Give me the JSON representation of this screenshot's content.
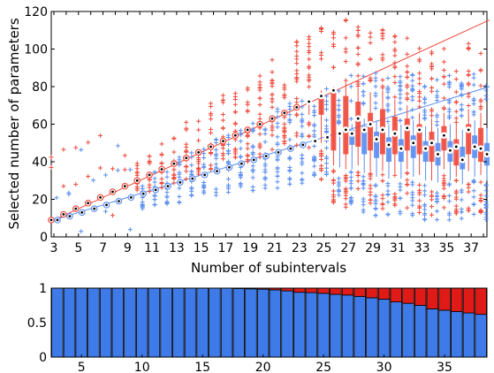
{
  "chart_data": [
    {
      "type": "box",
      "xlabel": "Number of subintervals",
      "ylabel": "Selected number of parameters",
      "xlim": [
        3,
        38
      ],
      "ylim": [
        0,
        120
      ],
      "xticks": [
        "3",
        "5",
        "7",
        "9",
        "11",
        "13",
        "15",
        "17",
        "19",
        "21",
        "23",
        "25",
        "27",
        "29",
        "31",
        "33",
        "35",
        "37"
      ],
      "yticks": [
        "0",
        "20",
        "40",
        "60",
        "80",
        "100",
        "120"
      ],
      "colors": {
        "red": "#ef4a3c",
        "blue": "#5b8ef0"
      },
      "reference_lines": [
        {
          "color": "red",
          "slope": 3,
          "intercept": 0
        },
        {
          "color": "blue",
          "slope": 2,
          "intercept": 3
        }
      ],
      "series": [
        {
          "color": "red",
          "x": [
            3,
            4,
            5,
            6,
            7,
            8,
            9,
            10,
            11,
            12,
            13,
            14,
            15,
            16,
            17,
            18,
            19,
            20,
            21,
            22,
            23,
            24,
            25,
            26,
            27,
            28,
            29,
            30,
            31,
            32,
            33,
            34,
            35,
            36,
            37,
            38
          ],
          "median": [
            9,
            12,
            15,
            18,
            21,
            24,
            27,
            30,
            33,
            36,
            39,
            42,
            45,
            48,
            51,
            54,
            57,
            60,
            63,
            66,
            69,
            72,
            75,
            78,
            57,
            63,
            60,
            57,
            55,
            58,
            57,
            50,
            54,
            48,
            57,
            47
          ],
          "q1": [
            9,
            12,
            15,
            18,
            21,
            24,
            27,
            30,
            33,
            36,
            39,
            42,
            45,
            48,
            51,
            54,
            57,
            60,
            63,
            66,
            69,
            72,
            65,
            46,
            44,
            48,
            46,
            44,
            44,
            46,
            44,
            40,
            46,
            38,
            44,
            40
          ],
          "q3": [
            9,
            12,
            15,
            18,
            21,
            24,
            27,
            30,
            33,
            36,
            39,
            42,
            45,
            48,
            51,
            54,
            57,
            60,
            63,
            66,
            69,
            72,
            76,
            78,
            75,
            72,
            66,
            68,
            64,
            63,
            60,
            56,
            59,
            52,
            60,
            58
          ],
          "whisker_low": [
            9,
            12,
            15,
            18,
            21,
            24,
            27,
            30,
            33,
            36,
            39,
            42,
            45,
            48,
            51,
            54,
            57,
            60,
            63,
            66,
            69,
            65,
            50,
            38,
            36,
            38,
            35,
            35,
            34,
            36,
            33,
            30,
            36,
            32,
            35,
            33
          ],
          "whisker_high": [
            9,
            12,
            15,
            18,
            21,
            24,
            27,
            30,
            33,
            36,
            39,
            42,
            45,
            48,
            51,
            54,
            57,
            60,
            63,
            66,
            69,
            72,
            78,
            80,
            82,
            79,
            77,
            78,
            73,
            70,
            66,
            63,
            66,
            60,
            68,
            66
          ]
        },
        {
          "color": "blue",
          "x": [
            3,
            4,
            5,
            6,
            7,
            8,
            9,
            10,
            11,
            12,
            13,
            14,
            15,
            16,
            17,
            18,
            19,
            20,
            21,
            22,
            23,
            24,
            25,
            26,
            27,
            28,
            29,
            30,
            31,
            32,
            33,
            34,
            35,
            36,
            37,
            38
          ],
          "median": [
            9,
            11,
            13,
            15,
            17,
            19,
            21,
            23,
            25,
            27,
            29,
            31,
            33,
            35,
            37,
            39,
            41,
            43,
            45,
            47,
            49,
            51,
            53,
            55,
            55,
            57,
            52,
            49,
            47,
            50,
            47,
            44,
            46,
            41,
            48,
            44
          ],
          "q1": [
            9,
            11,
            13,
            15,
            17,
            19,
            21,
            23,
            25,
            27,
            29,
            31,
            33,
            35,
            37,
            39,
            41,
            43,
            45,
            47,
            49,
            51,
            53,
            55,
            49,
            44,
            42,
            40,
            40,
            42,
            40,
            38,
            40,
            36,
            42,
            38
          ],
          "q3": [
            9,
            11,
            13,
            15,
            17,
            19,
            21,
            23,
            25,
            27,
            29,
            31,
            33,
            35,
            37,
            39,
            41,
            43,
            45,
            47,
            49,
            51,
            53,
            55,
            57,
            59,
            56,
            53,
            52,
            54,
            51,
            50,
            51,
            48,
            54,
            50
          ],
          "whisker_low": [
            9,
            11,
            13,
            15,
            17,
            19,
            21,
            23,
            25,
            27,
            29,
            31,
            33,
            35,
            37,
            39,
            41,
            43,
            45,
            47,
            49,
            51,
            53,
            37,
            36,
            34,
            32,
            31,
            31,
            32,
            30,
            29,
            30,
            28,
            32,
            30
          ],
          "whisker_high": [
            9,
            11,
            13,
            15,
            17,
            19,
            21,
            23,
            25,
            27,
            29,
            31,
            33,
            35,
            37,
            39,
            41,
            43,
            45,
            47,
            49,
            51,
            53,
            55,
            60,
            63,
            62,
            60,
            60,
            62,
            59,
            58,
            60,
            57,
            62,
            58
          ]
        }
      ]
    },
    {
      "type": "bar",
      "stacked": true,
      "xlim": [
        3,
        38
      ],
      "ylim": [
        0,
        1
      ],
      "xticks": [
        "5",
        "10",
        "15",
        "20",
        "25",
        "30",
        "35"
      ],
      "yticks": [
        "0",
        "0.5",
        "1"
      ],
      "x": [
        3,
        4,
        5,
        6,
        7,
        8,
        9,
        10,
        11,
        12,
        13,
        14,
        15,
        16,
        17,
        18,
        19,
        20,
        21,
        22,
        23,
        24,
        25,
        26,
        27,
        28,
        29,
        30,
        31,
        32,
        33,
        34,
        35,
        36,
        37,
        38
      ],
      "series": [
        {
          "color": "blue",
          "values": [
            1,
            1,
            1,
            1,
            1,
            1,
            1,
            1,
            1,
            1,
            1,
            1,
            1,
            1,
            1,
            0.995,
            0.99,
            0.985,
            0.975,
            0.96,
            0.94,
            0.935,
            0.925,
            0.91,
            0.9,
            0.88,
            0.86,
            0.84,
            0.8,
            0.78,
            0.75,
            0.7,
            0.68,
            0.66,
            0.64,
            0.62
          ]
        },
        {
          "color": "red",
          "values": [
            0,
            0,
            0,
            0,
            0,
            0,
            0,
            0,
            0,
            0,
            0,
            0,
            0,
            0,
            0,
            0.005,
            0.01,
            0.015,
            0.025,
            0.04,
            0.06,
            0.065,
            0.075,
            0.09,
            0.1,
            0.12,
            0.14,
            0.16,
            0.2,
            0.22,
            0.25,
            0.3,
            0.32,
            0.34,
            0.36,
            0.38
          ]
        }
      ]
    }
  ]
}
